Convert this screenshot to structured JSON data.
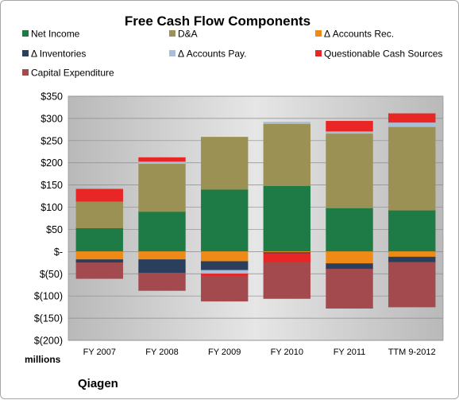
{
  "chart_data": {
    "type": "bar",
    "stacked": true,
    "title": "Free Cash Flow Components",
    "units_label": "millions",
    "company": "Qiagen",
    "categories": [
      "FY 2007",
      "FY 2008",
      "FY 2009",
      "FY 2010",
      "FY 2011",
      "TTM 9-2012"
    ],
    "ylim": [
      -200,
      350
    ],
    "yticks": [
      350,
      300,
      250,
      200,
      150,
      100,
      50,
      0,
      -50,
      -100,
      -150,
      -200
    ],
    "ytick_labels": [
      "$350",
      "$300",
      "$250",
      "$200",
      "$150",
      "$100",
      "$50",
      "$-",
      "$(50)",
      "$(100)",
      "$(150)",
      "$(200)"
    ],
    "grid": true,
    "legend_position": "top",
    "series": [
      {
        "name": "Net Income",
        "color": "#1e7b46",
        "values": [
          53,
          90,
          140,
          148,
          98,
          93
        ]
      },
      {
        "name": "D&A",
        "color": "#9b9155",
        "values": [
          60,
          108,
          118,
          140,
          168,
          188
        ]
      },
      {
        "name": "Δ Accounts Rec.",
        "color": "#f08a17",
        "values": [
          -18,
          -18,
          -22,
          -2,
          -27,
          -12
        ]
      },
      {
        "name": "Δ Inventories",
        "color": "#2a3f5e",
        "values": [
          -7,
          -30,
          -20,
          -2,
          -12,
          -12
        ]
      },
      {
        "name": "Δ Accounts Pay.",
        "color": "#a9bfd8",
        "values": [
          0,
          5,
          -8,
          4,
          5,
          10
        ]
      },
      {
        "name": "Questionable Cash Sources",
        "color": "#e82626",
        "values": [
          28,
          9,
          -5,
          -20,
          23,
          20
        ]
      },
      {
        "name": "Capital Expenditure",
        "color": "#a24a4d",
        "values": [
          -36,
          -40,
          -57,
          -82,
          -89,
          -101
        ]
      }
    ]
  }
}
